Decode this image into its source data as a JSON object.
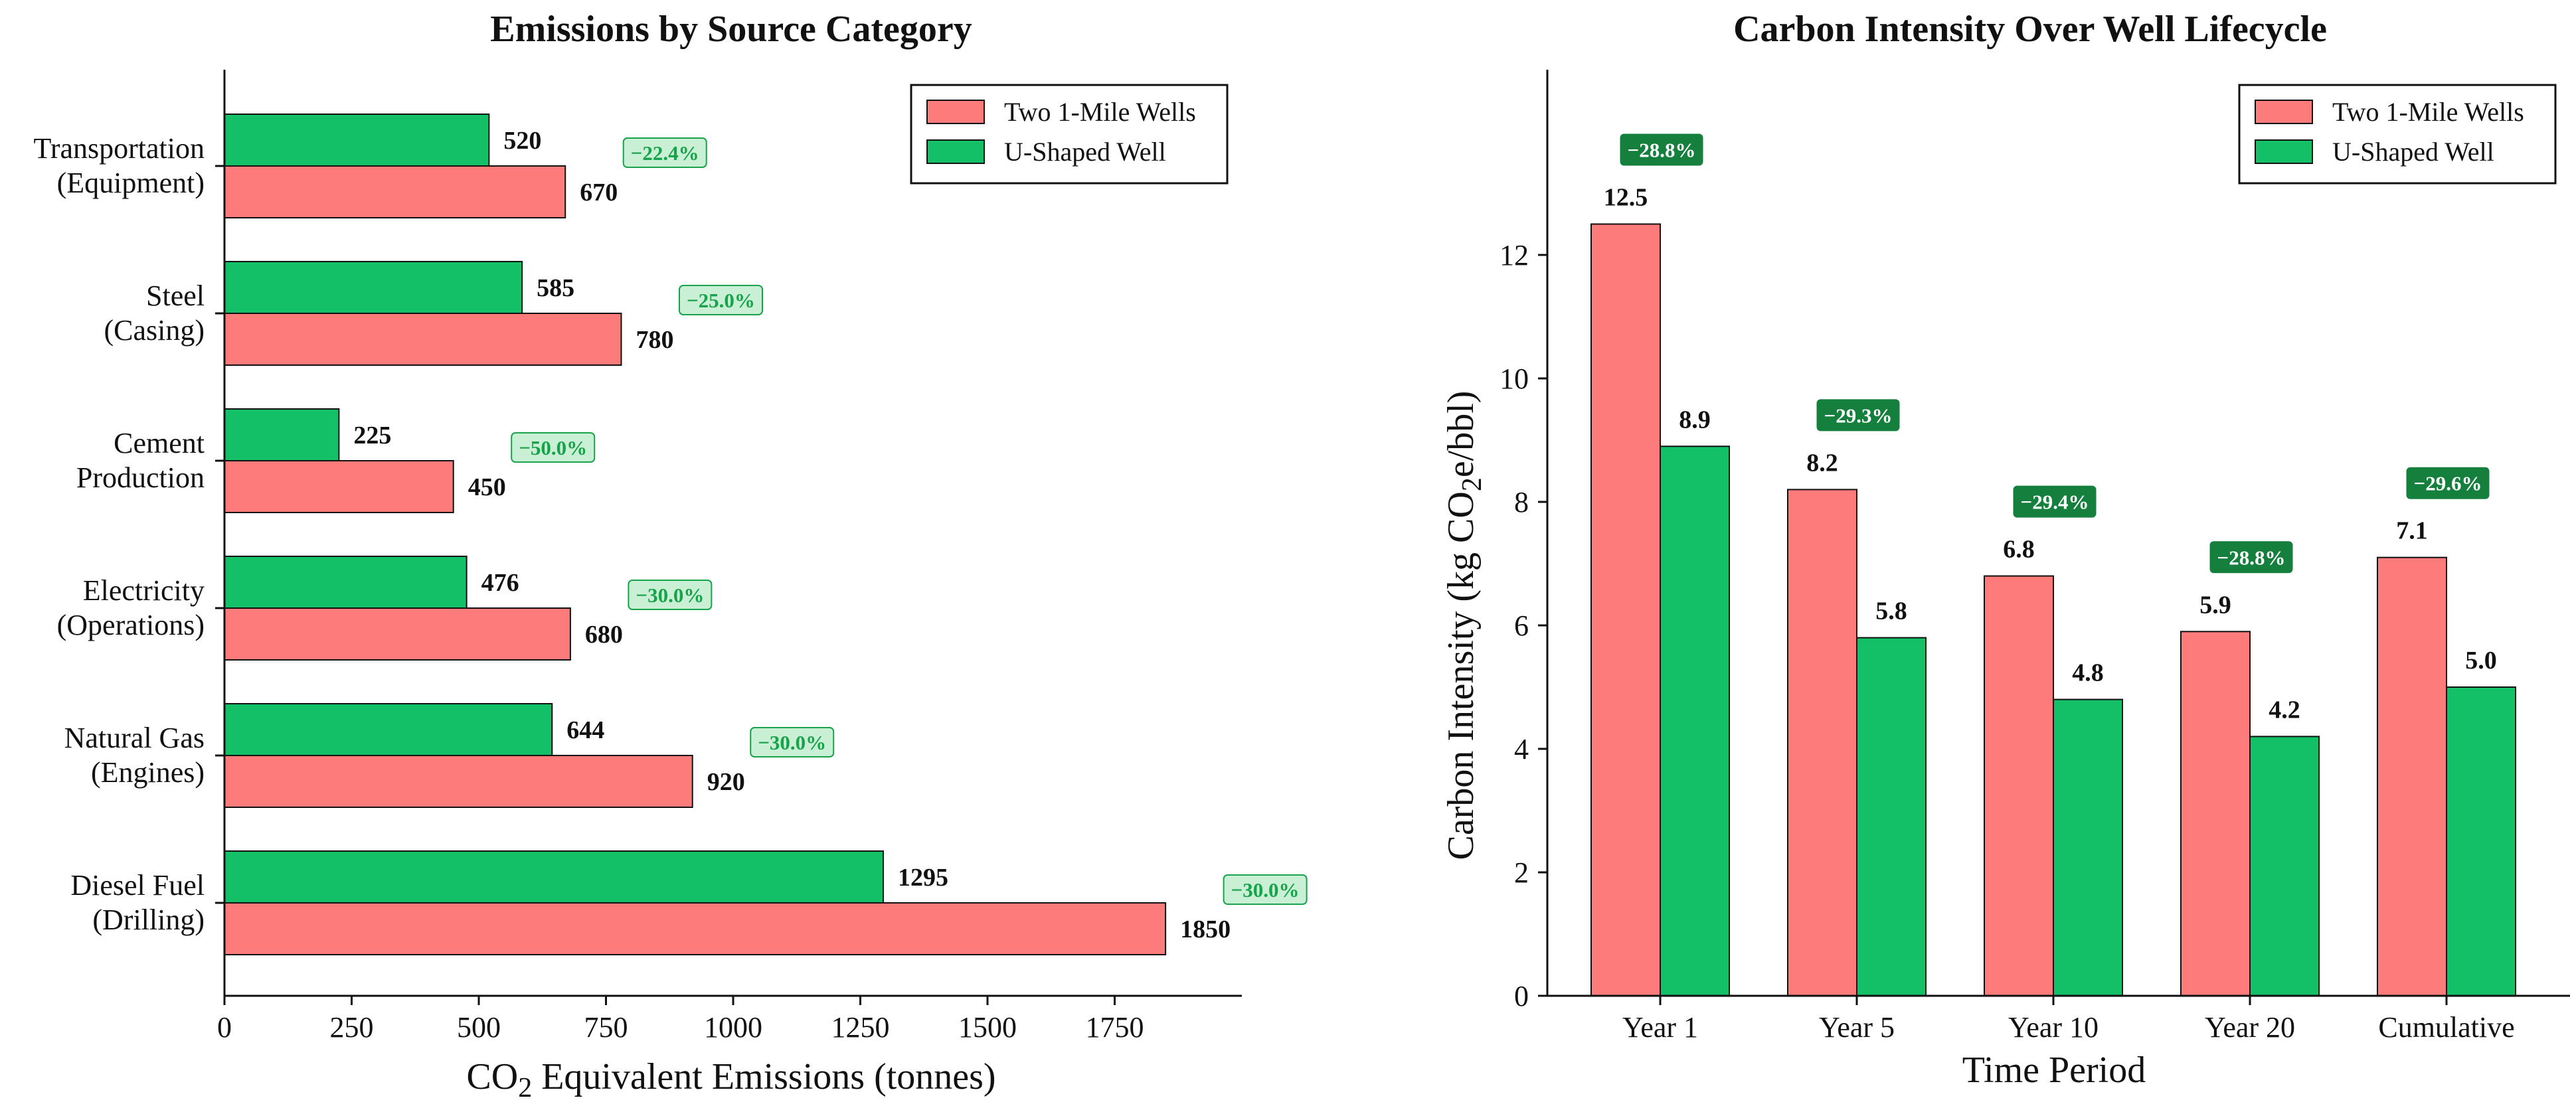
{
  "colors": {
    "two_wells": "#fd7b7b",
    "u_shaped": "#13bf67",
    "badge_left_fill": "#c9efd5",
    "badge_left_text": "#16a34a",
    "badge_right_fill": "#15803d",
    "axis": "#111111"
  },
  "legend": {
    "two_wells": "Two 1-Mile Wells",
    "u_shaped": "U-Shaped Well"
  },
  "chart_data": [
    {
      "type": "bar",
      "orientation": "horizontal",
      "title": "Emissions by Source Category",
      "xlabel_main": "CO",
      "xlabel_sub": "2",
      "xlabel_rest": " Equivalent Emissions (tonnes)",
      "xlim": [
        0,
        2000
      ],
      "xticks": [
        "0",
        "250",
        "500",
        "750",
        "1000",
        "1250",
        "1500",
        "1750"
      ],
      "xtick_values": [
        0,
        250,
        500,
        750,
        1000,
        1250,
        1500,
        1750
      ],
      "categories": [
        {
          "line1": "Diesel Fuel",
          "line2": "(Drilling)"
        },
        {
          "line1": "Natural Gas",
          "line2": "(Engines)"
        },
        {
          "line1": "Electricity",
          "line2": "(Operations)"
        },
        {
          "line1": "Cement",
          "line2": "Production"
        },
        {
          "line1": "Steel",
          "line2": "(Casing)"
        },
        {
          "line1": "Transportation",
          "line2": "(Equipment)"
        }
      ],
      "series": [
        {
          "name": "Two 1-Mile Wells",
          "values": [
            1850,
            920,
            680,
            450,
            780,
            670
          ],
          "labels": [
            "1850",
            "920",
            "680",
            "450",
            "780",
            "670"
          ]
        },
        {
          "name": "U-Shaped Well",
          "values": [
            1295,
            644,
            476,
            225,
            585,
            520
          ],
          "labels": [
            "1295",
            "644",
            "476",
            "225",
            "585",
            "520"
          ]
        }
      ],
      "reductions": [
        "−30.0%",
        "−30.0%",
        "−30.0%",
        "−50.0%",
        "−25.0%",
        "−22.4%"
      ],
      "legend_position": "top-right"
    },
    {
      "type": "bar",
      "orientation": "vertical",
      "title": "Carbon Intensity Over Well Lifecycle",
      "xlabel": "Time Period",
      "ylabel_main": "Carbon Intensity (kg CO",
      "ylabel_sub": "2",
      "ylabel_rest": "e/bbl)",
      "ylim": [
        0,
        15
      ],
      "yticks": [
        "0",
        "2",
        "4",
        "6",
        "8",
        "10",
        "12"
      ],
      "ytick_values": [
        0,
        2,
        4,
        6,
        8,
        10,
        12
      ],
      "categories": [
        "Year 1",
        "Year 5",
        "Year 10",
        "Year 20",
        "Cumulative"
      ],
      "series": [
        {
          "name": "Two 1-Mile Wells",
          "values": [
            12.5,
            8.2,
            6.8,
            5.9,
            7.1
          ],
          "labels": [
            "12.5",
            "8.2",
            "6.8",
            "5.9",
            "7.1"
          ]
        },
        {
          "name": "U-Shaped Well",
          "values": [
            8.9,
            5.8,
            4.8,
            4.2,
            5.0
          ],
          "labels": [
            "8.9",
            "5.8",
            "4.8",
            "4.2",
            "5.0"
          ]
        }
      ],
      "reductions": [
        "−28.8%",
        "−29.3%",
        "−29.4%",
        "−28.8%",
        "−29.6%"
      ],
      "legend_position": "top-right"
    }
  ]
}
